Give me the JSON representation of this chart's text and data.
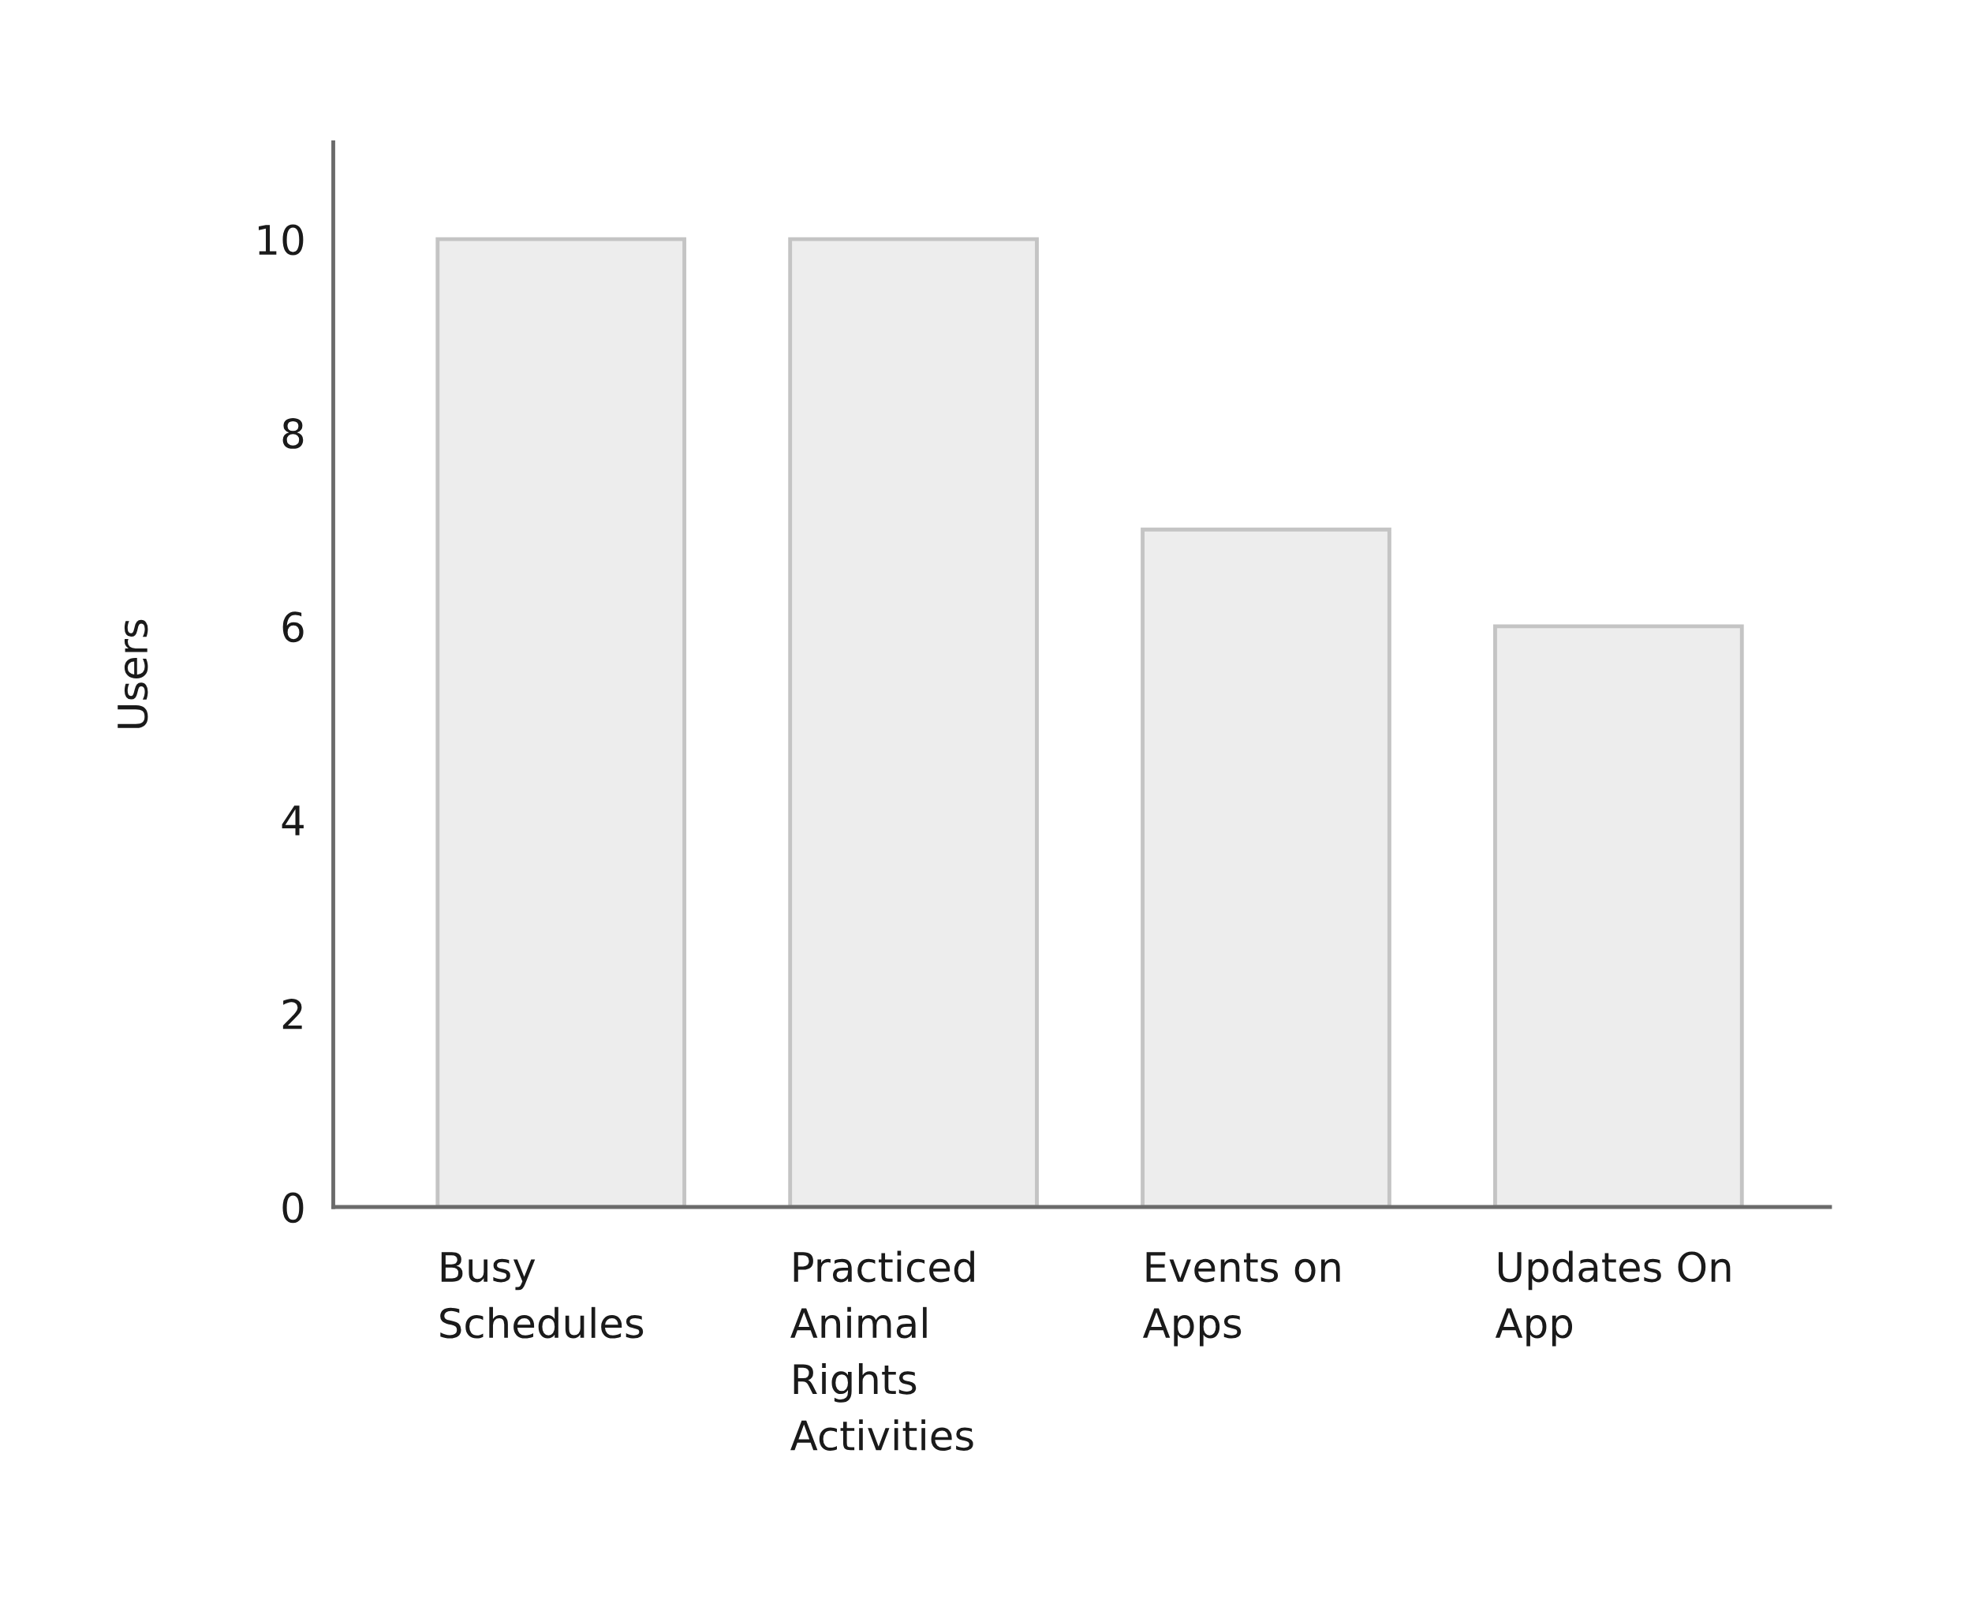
{
  "chart_data": {
    "type": "bar",
    "ylabel": "Users",
    "categories": [
      "Busy\nSchedules",
      "Practiced\nAnimal\nRights\nActivities",
      "Events on\nApps",
      "Updates On\nApp"
    ],
    "values": [
      10,
      10,
      7,
      6
    ],
    "color": "#ededed",
    "ylim": [
      0,
      11
    ],
    "yticks": [
      0,
      2,
      4,
      6,
      8,
      10
    ],
    "grid": false,
    "legend": false
  }
}
